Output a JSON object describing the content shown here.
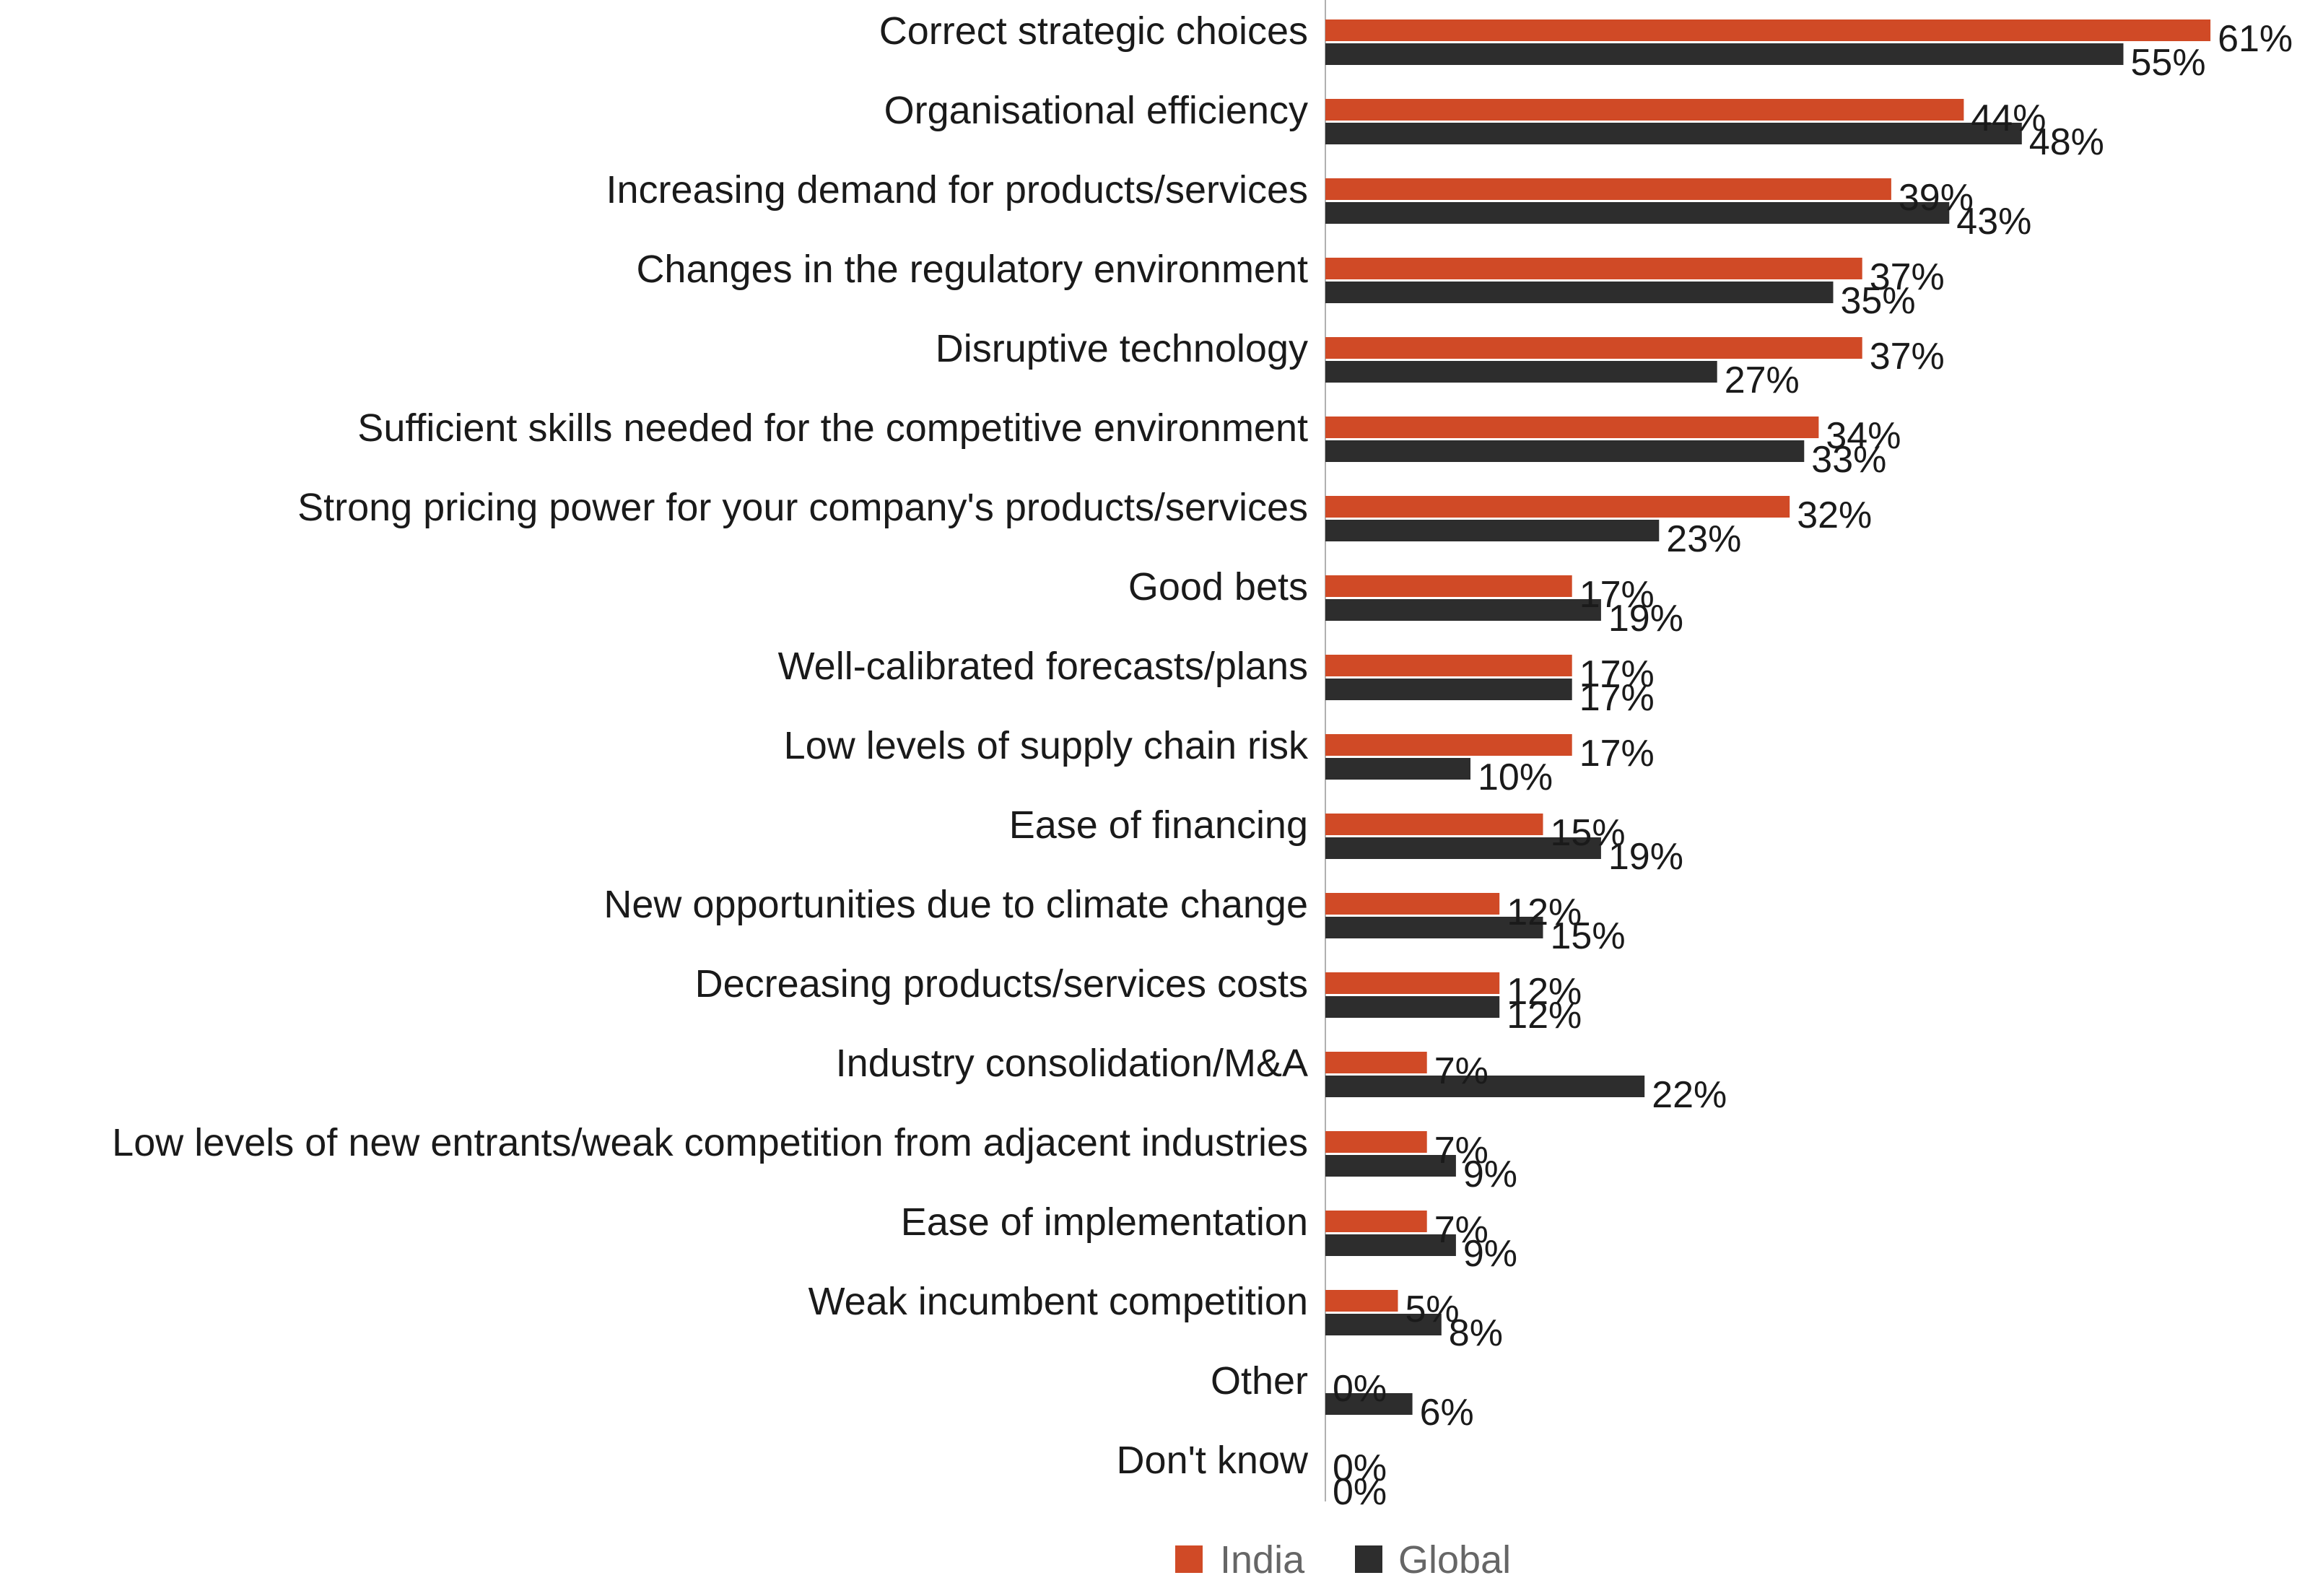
{
  "colors": {
    "india": "#d04a26",
    "global": "#2d2d2d",
    "axis": "#b0b0b0"
  },
  "chart_data": {
    "type": "bar",
    "orientation": "horizontal",
    "value_format": "percent",
    "xlim": [
      0,
      61
    ],
    "grid": false,
    "legend_position": "bottom",
    "categories": [
      "Correct strategic choices",
      "Organisational efficiency",
      "Increasing demand for products/services",
      "Changes in the regulatory environment",
      "Disruptive technology",
      "Sufficient skills needed for the competitive environment",
      "Strong pricing power for your company's products/services",
      "Good bets",
      "Well-calibrated forecasts/plans",
      "Low levels of supply chain risk",
      "Ease of financing",
      "New opportunities due to climate change",
      "Decreasing products/services costs",
      "Industry consolidation/M&A",
      "Low levels of new entrants/weak competition from adjacent industries",
      "Ease of implementation",
      "Weak incumbent competition",
      "Other",
      "Don't know"
    ],
    "series": [
      {
        "name": "India",
        "values": [
          61,
          44,
          39,
          37,
          37,
          34,
          32,
          17,
          17,
          17,
          15,
          12,
          12,
          7,
          7,
          7,
          5,
          0,
          0
        ]
      },
      {
        "name": "Global",
        "values": [
          55,
          48,
          43,
          35,
          27,
          33,
          23,
          19,
          17,
          10,
          19,
          15,
          12,
          22,
          9,
          9,
          8,
          6,
          0
        ]
      }
    ]
  }
}
